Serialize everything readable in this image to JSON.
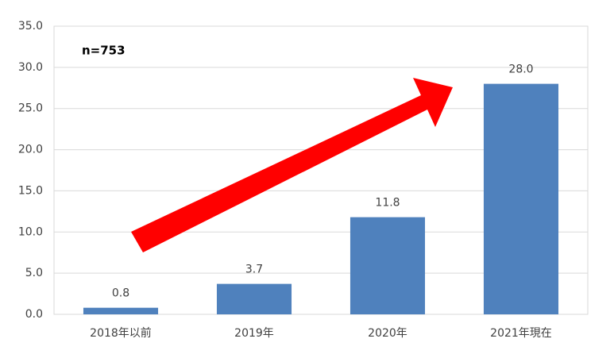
{
  "chart_data": {
    "type": "bar",
    "annotation": "n=753",
    "categories": [
      "2018年以前",
      "2019年",
      "2020年",
      "2021年現在"
    ],
    "values": [
      0.8,
      3.7,
      11.8,
      28.0
    ],
    "value_labels": [
      "0.8",
      "3.7",
      "11.8",
      "28.0"
    ],
    "color": "#4f81bd",
    "ylim": [
      0,
      35
    ],
    "yticks": [
      {
        "value": 0,
        "label": "0.0"
      },
      {
        "value": 5,
        "label": "5.0"
      },
      {
        "value": 10,
        "label": "10.0"
      },
      {
        "value": 15,
        "label": "15.0"
      },
      {
        "value": 20,
        "label": "20.0"
      },
      {
        "value": 25,
        "label": "25.0"
      },
      {
        "value": 30,
        "label": "30.0"
      },
      {
        "value": 35,
        "label": "35.0"
      }
    ],
    "grid": true
  }
}
